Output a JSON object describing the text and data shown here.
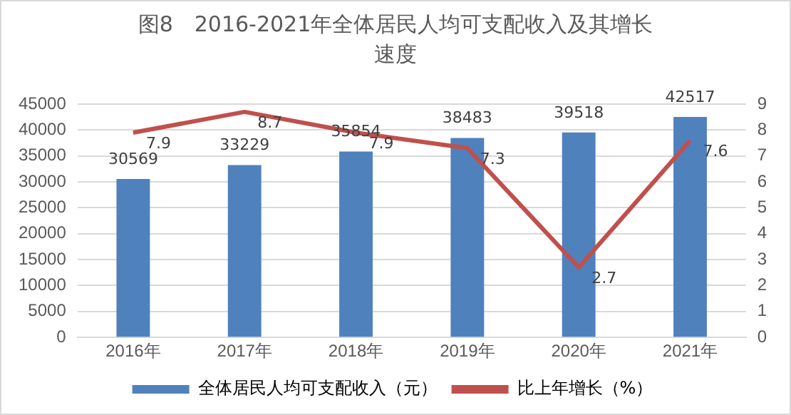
{
  "chart_data": {
    "type": "bar",
    "title": "图8　2016-2021年全体居民人均可支配收入及其增长速度",
    "categories": [
      "2016年",
      "2017年",
      "2018年",
      "2019年",
      "2020年",
      "2021年"
    ],
    "series": [
      {
        "name": "全体居民人均可支配收入（元）",
        "color": "#4f81bd",
        "values": [
          30569,
          33229,
          35854,
          38483,
          39518,
          42517
        ]
      },
      {
        "name": "比上年增长（%）",
        "type": "line",
        "color": "#c0504d",
        "axis": "y2",
        "values": [
          7.9,
          8.7,
          7.9,
          7.3,
          2.7,
          7.6
        ]
      }
    ],
    "ylim": [
      0,
      45000
    ],
    "yticks": [
      0,
      5000,
      10000,
      15000,
      20000,
      25000,
      30000,
      35000,
      40000,
      45000
    ],
    "y2lim": [
      0,
      9
    ],
    "y2ticks": [
      0,
      1,
      2,
      3,
      4,
      5,
      6,
      7,
      8,
      9
    ],
    "grid": "y",
    "legend": "bottom",
    "data_labels": true,
    "marker": "none",
    "line_style": "solid"
  }
}
